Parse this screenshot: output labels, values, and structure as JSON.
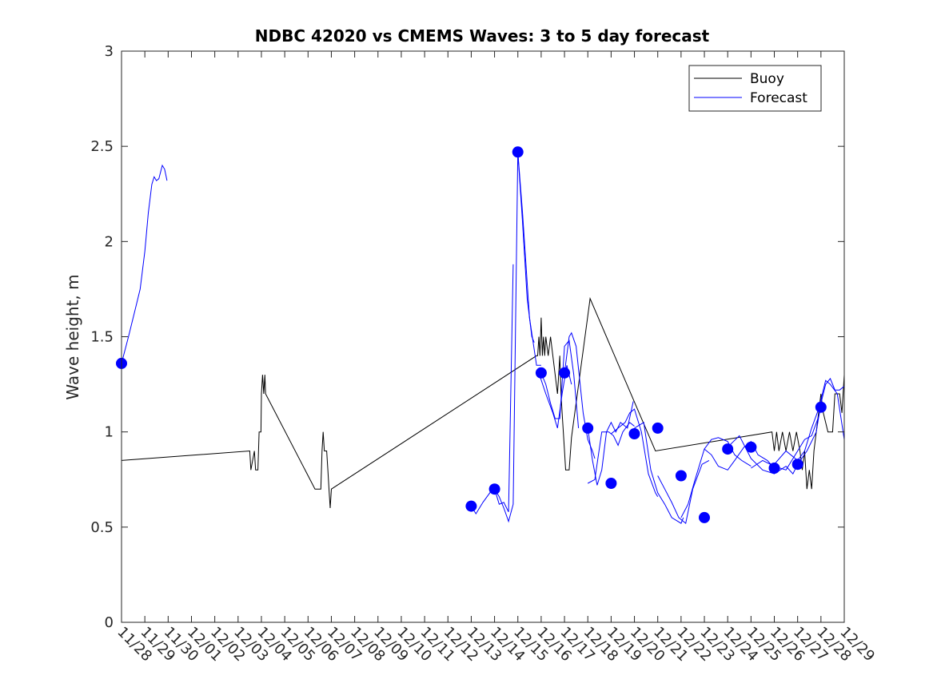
{
  "chart_data": {
    "type": "line",
    "title": "NDBC 42020 vs CMEMS Waves: 3 to 5 day forecast",
    "xlabel": "",
    "ylabel": "Wave height, m",
    "ylim": [
      0,
      3
    ],
    "xlim_days": [
      0,
      31
    ],
    "x_tick_labels": [
      "11/28",
      "11/29",
      "11/30",
      "12/01",
      "12/02",
      "12/03",
      "12/04",
      "12/05",
      "12/06",
      "12/07",
      "12/08",
      "12/09",
      "12/10",
      "12/11",
      "12/12",
      "12/13",
      "12/14",
      "12/15",
      "12/16",
      "12/17",
      "12/18",
      "12/19",
      "12/20",
      "12/21",
      "12/22",
      "12/23",
      "12/24",
      "12/25",
      "12/26",
      "12/27",
      "12/28",
      "12/29"
    ],
    "y_ticks": [
      0,
      0.5,
      1,
      1.5,
      2,
      2.5,
      3
    ],
    "y_tick_labels": [
      "0",
      "0.5",
      "1",
      "1.5",
      "2",
      "2.5",
      "3"
    ],
    "legend": {
      "placement": "top-right",
      "entries": [
        "Buoy",
        "Forecast"
      ]
    },
    "colors": {
      "buoy": "#000000",
      "forecast": "#0000ff",
      "markers": "#0000ff",
      "axes": "#262626"
    },
    "series": [
      {
        "name": "Buoy",
        "points": [
          [
            0,
            0.85
          ],
          [
            5.5,
            0.9
          ],
          [
            5.55,
            0.8
          ],
          [
            5.7,
            0.9
          ],
          [
            5.75,
            0.8
          ],
          [
            5.85,
            0.8
          ],
          [
            5.9,
            1.0
          ],
          [
            5.98,
            1.0
          ],
          [
            6.0,
            1.2
          ],
          [
            6.05,
            1.3
          ],
          [
            6.1,
            1.2
          ],
          [
            6.15,
            1.3
          ],
          [
            6.18,
            1.2
          ],
          [
            8.3,
            0.7
          ],
          [
            8.55,
            0.7
          ],
          [
            8.6,
            0.9
          ],
          [
            8.65,
            1.0
          ],
          [
            8.7,
            0.9
          ],
          [
            8.8,
            0.9
          ],
          [
            8.85,
            0.8
          ],
          [
            8.9,
            0.7
          ],
          [
            8.95,
            0.6
          ],
          [
            9.0,
            0.7
          ],
          [
            17.8,
            1.4
          ],
          [
            17.85,
            1.4
          ],
          [
            17.9,
            1.5
          ],
          [
            17.95,
            1.4
          ],
          [
            18.0,
            1.6
          ],
          [
            18.05,
            1.4
          ],
          [
            18.1,
            1.5
          ],
          [
            18.15,
            1.4
          ],
          [
            18.2,
            1.5
          ],
          [
            18.3,
            1.4
          ],
          [
            18.4,
            1.5
          ],
          [
            18.5,
            1.4
          ],
          [
            18.6,
            1.3
          ],
          [
            18.7,
            1.2
          ],
          [
            18.75,
            1.3
          ],
          [
            18.8,
            1.4
          ],
          [
            18.85,
            1.2
          ],
          [
            18.9,
            1.1
          ],
          [
            18.95,
            1.0
          ],
          [
            19.0,
            0.9
          ],
          [
            19.05,
            0.8
          ],
          [
            19.2,
            0.8
          ],
          [
            19.3,
            0.97
          ],
          [
            20.1,
            1.7
          ],
          [
            22.9,
            0.9
          ],
          [
            27.9,
            1.0
          ],
          [
            28.0,
            0.9
          ],
          [
            28.1,
            1.0
          ],
          [
            28.2,
            0.9
          ],
          [
            28.35,
            1.0
          ],
          [
            28.5,
            0.9
          ],
          [
            28.65,
            1.0
          ],
          [
            28.8,
            0.9
          ],
          [
            28.95,
            1.0
          ],
          [
            29.1,
            0.9
          ],
          [
            29.2,
            0.8
          ],
          [
            29.3,
            0.9
          ],
          [
            29.4,
            0.7
          ],
          [
            29.5,
            0.8
          ],
          [
            29.6,
            0.7
          ],
          [
            29.7,
            0.9
          ],
          [
            29.8,
            1.0
          ],
          [
            29.9,
            1.1
          ],
          [
            30.0,
            1.2
          ],
          [
            30.1,
            1.1
          ],
          [
            30.3,
            1.0
          ],
          [
            30.5,
            1.0
          ],
          [
            30.6,
            1.2
          ],
          [
            30.8,
            1.2
          ],
          [
            30.9,
            1.1
          ],
          [
            31.0,
            1.3
          ]
        ]
      },
      {
        "name": "Forecast",
        "segments": [
          [
            [
              0,
              1.36
            ],
            [
              0.3,
              1.5
            ],
            [
              0.6,
              1.65
            ],
            [
              0.8,
              1.75
            ],
            [
              1.0,
              1.95
            ],
            [
              1.15,
              2.15
            ],
            [
              1.3,
              2.3
            ],
            [
              1.4,
              2.34
            ],
            [
              1.5,
              2.32
            ],
            [
              1.6,
              2.33
            ],
            [
              1.75,
              2.4
            ],
            [
              1.85,
              2.38
            ],
            [
              1.95,
              2.32
            ]
          ],
          [
            [
              15.0,
              0.61
            ],
            [
              15.2,
              0.57
            ],
            [
              15.5,
              0.63
            ],
            [
              15.8,
              0.68
            ],
            [
              16.0,
              0.7
            ],
            [
              16.2,
              0.66
            ],
            [
              16.4,
              0.6
            ],
            [
              16.6,
              0.53
            ],
            [
              16.8,
              0.62
            ],
            [
              17.0,
              2.47
            ],
            [
              17.2,
              2.15
            ],
            [
              17.5,
              1.6
            ],
            [
              17.8,
              1.35
            ],
            [
              18.0,
              1.35
            ]
          ],
          [
            [
              16.0,
              0.7
            ],
            [
              16.2,
              0.62
            ],
            [
              16.4,
              0.63
            ],
            [
              16.6,
              0.58
            ],
            [
              16.8,
              1.88
            ]
          ],
          [
            [
              17.0,
              2.47
            ],
            [
              17.2,
              2.1
            ],
            [
              17.4,
              1.7
            ],
            [
              17.6,
              1.5
            ],
            [
              17.7,
              1.47
            ]
          ],
          [
            [
              18.0,
              1.31
            ],
            [
              18.2,
              1.25
            ],
            [
              18.4,
              1.15
            ],
            [
              18.6,
              1.07
            ],
            [
              18.8,
              1.07
            ],
            [
              19.0,
              1.45
            ],
            [
              19.2,
              1.48
            ],
            [
              19.4,
              1.3
            ],
            [
              19.6,
              1.02
            ]
          ],
          [
            [
              17.9,
              1.31
            ],
            [
              18.2,
              1.2
            ],
            [
              18.5,
              1.1
            ],
            [
              18.7,
              1.02
            ],
            [
              18.9,
              1.2
            ],
            [
              19.1,
              1.35
            ],
            [
              19.3,
              1.25
            ]
          ],
          [
            [
              19.0,
              1.31
            ],
            [
              19.2,
              1.5
            ],
            [
              19.3,
              1.52
            ],
            [
              19.5,
              1.45
            ],
            [
              19.8,
              1.1
            ],
            [
              20.0,
              0.96
            ],
            [
              20.2,
              0.9
            ],
            [
              20.3,
              0.86
            ]
          ],
          [
            [
              20.0,
              1.02
            ],
            [
              20.2,
              0.85
            ],
            [
              20.4,
              0.72
            ],
            [
              20.6,
              0.8
            ],
            [
              20.8,
              1.0
            ],
            [
              21.0,
              1.05
            ],
            [
              21.2,
              1.0
            ],
            [
              21.4,
              1.05
            ],
            [
              21.7,
              1.02
            ],
            [
              21.95,
              1.16
            ]
          ],
          [
            [
              20.0,
              0.73
            ],
            [
              20.3,
              0.75
            ],
            [
              20.6,
              1.0
            ],
            [
              20.9,
              1.0
            ],
            [
              21.1,
              0.98
            ],
            [
              21.3,
              0.93
            ],
            [
              21.5,
              1.0
            ],
            [
              21.8,
              1.05
            ],
            [
              22.0,
              1.03
            ]
          ],
          [
            [
              21.0,
              0.99
            ],
            [
              21.3,
              1.02
            ],
            [
              21.6,
              1.05
            ],
            [
              21.8,
              1.1
            ],
            [
              22.0,
              1.12
            ],
            [
              22.3,
              1.0
            ],
            [
              22.6,
              0.78
            ],
            [
              22.9,
              0.68
            ],
            [
              23.0,
              0.66
            ]
          ],
          [
            [
              22.0,
              1.02
            ],
            [
              22.4,
              1.05
            ],
            [
              22.7,
              0.8
            ],
            [
              23.0,
              0.68
            ],
            [
              23.3,
              0.62
            ],
            [
              23.6,
              0.55
            ],
            [
              24.0,
              0.52
            ],
            [
              24.1,
              0.55
            ]
          ],
          [
            [
              23.0,
              0.77
            ],
            [
              23.3,
              0.7
            ],
            [
              23.6,
              0.63
            ],
            [
              23.9,
              0.55
            ],
            [
              24.2,
              0.52
            ],
            [
              24.5,
              0.7
            ],
            [
              24.9,
              0.83
            ],
            [
              25.2,
              0.85
            ]
          ],
          [
            [
              24.0,
              0.55
            ],
            [
              24.3,
              0.62
            ],
            [
              24.6,
              0.75
            ],
            [
              25.0,
              0.91
            ],
            [
              25.3,
              0.96
            ],
            [
              25.6,
              0.97
            ],
            [
              26.0,
              0.95
            ],
            [
              26.3,
              0.88
            ],
            [
              26.6,
              0.85
            ],
            [
              27.0,
              0.82
            ]
          ],
          [
            [
              25.0,
              0.91
            ],
            [
              25.3,
              0.88
            ],
            [
              25.6,
              0.82
            ],
            [
              26.0,
              0.8
            ],
            [
              26.3,
              0.85
            ],
            [
              26.7,
              0.92
            ],
            [
              27.0,
              0.95
            ],
            [
              27.3,
              0.88
            ],
            [
              27.7,
              0.85
            ],
            [
              28.0,
              0.81
            ]
          ],
          [
            [
              26.0,
              0.92
            ],
            [
              26.5,
              0.98
            ],
            [
              27.0,
              0.86
            ],
            [
              27.5,
              0.8
            ],
            [
              28.0,
              0.78
            ],
            [
              28.5,
              0.82
            ],
            [
              28.8,
              0.78
            ],
            [
              29.0,
              0.83
            ]
          ],
          [
            [
              27.0,
              0.81
            ],
            [
              27.5,
              0.85
            ],
            [
              28.0,
              0.82
            ],
            [
              28.5,
              0.8
            ],
            [
              29.0,
              0.9
            ],
            [
              29.3,
              0.96
            ],
            [
              29.6,
              0.98
            ],
            [
              29.9,
              1.08
            ],
            [
              30.0,
              1.13
            ]
          ],
          [
            [
              28.0,
              0.83
            ],
            [
              28.5,
              0.9
            ],
            [
              29.0,
              0.85
            ],
            [
              29.3,
              0.9
            ],
            [
              29.6,
              1.02
            ],
            [
              29.9,
              1.12
            ],
            [
              30.2,
              1.27
            ],
            [
              30.4,
              1.25
            ],
            [
              30.7,
              1.2
            ],
            [
              31.0,
              0.96
            ]
          ],
          [
            [
              29.0,
              0.83
            ],
            [
              29.4,
              0.9
            ],
            [
              29.8,
              1.0
            ],
            [
              30.0,
              1.15
            ],
            [
              30.2,
              1.25
            ],
            [
              30.4,
              1.28
            ],
            [
              30.6,
              1.22
            ],
            [
              30.8,
              1.22
            ],
            [
              31.0,
              1.24
            ]
          ]
        ],
        "markers": [
          [
            0,
            1.36
          ],
          [
            15.0,
            0.61
          ],
          [
            16.0,
            0.7
          ],
          [
            17.0,
            2.47
          ],
          [
            18.0,
            1.31
          ],
          [
            19.0,
            1.31
          ],
          [
            20.0,
            1.02
          ],
          [
            21.0,
            0.73
          ],
          [
            22.0,
            0.99
          ],
          [
            23.0,
            1.02
          ],
          [
            24.0,
            0.77
          ],
          [
            25.0,
            0.55
          ],
          [
            26.0,
            0.91
          ],
          [
            27.0,
            0.92
          ],
          [
            28.0,
            0.81
          ],
          [
            29.0,
            0.83
          ],
          [
            30.0,
            1.13
          ]
        ]
      }
    ]
  }
}
